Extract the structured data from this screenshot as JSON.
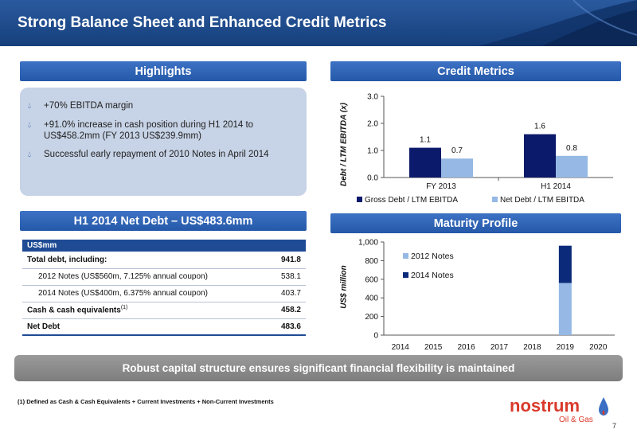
{
  "header": {
    "title": "Strong Balance Sheet and Enhanced Credit Metrics"
  },
  "highlights": {
    "heading": "Highlights",
    "items": [
      "+70% EBITDA margin",
      "+91.0% increase in cash position during H1 2014 to US$458.2mm (FY 2013 US$239.9mm)",
      "Successful early repayment of 2010 Notes in April 2014"
    ]
  },
  "net_debt": {
    "heading": "H1 2014 Net Debt – US$483.6mm",
    "unit_label": "US$mm",
    "rows": [
      {
        "label": "Total debt, including:",
        "value": "941.8"
      },
      {
        "label": "2012 Notes (US$560m, 7.125% annual coupon)",
        "value": "538.1"
      },
      {
        "label": "2014 Notes (US$400m, 6.375% annual coupon)",
        "value": "403.7"
      },
      {
        "label": "Cash & cash equivalents",
        "sup": "(1)",
        "value": "458.2"
      },
      {
        "label": "Net Debt",
        "value": "483.6"
      }
    ]
  },
  "credit_metrics": {
    "heading": "Credit Metrics"
  },
  "maturity": {
    "heading": "Maturity Profile"
  },
  "chart_data": [
    {
      "type": "bar",
      "title": "",
      "ylabel": "Debt / LTM EBITDA (x)",
      "ylim": [
        0,
        3
      ],
      "yticks": [
        "0.0",
        "1.0",
        "2.0",
        "3.0"
      ],
      "categories": [
        "FY 2013",
        "H1 2014"
      ],
      "series": [
        {
          "name": "Gross Debt / LTM EBITDA",
          "values": [
            1.1,
            1.6
          ],
          "labels": [
            "1.1",
            "1.6"
          ],
          "color": "#0b1a6b"
        },
        {
          "name": "Net Debt / LTM EBITDA",
          "values": [
            0.7,
            0.8
          ],
          "labels": [
            "0.7",
            "0.8"
          ],
          "color": "#95b8e4"
        }
      ],
      "legend": "bottom"
    },
    {
      "type": "bar",
      "stacked": true,
      "title": "",
      "ylabel": "US$ million",
      "ylim": [
        0,
        1000
      ],
      "yticks": [
        "0",
        "200",
        "400",
        "600",
        "800",
        "1,000"
      ],
      "categories": [
        "2014",
        "2015",
        "2016",
        "2017",
        "2018",
        "2019",
        "2020"
      ],
      "series": [
        {
          "name": "2012 Notes",
          "values": [
            0,
            0,
            0,
            0,
            0,
            560,
            0
          ],
          "color": "#95b8e4"
        },
        {
          "name": "2014 Notes",
          "values": [
            0,
            0,
            0,
            0,
            0,
            400,
            0
          ],
          "color": "#0b2a7a"
        }
      ],
      "legend": "top-left"
    }
  ],
  "banner": {
    "text": "Robust capital structure ensures significant financial flexibility is maintained"
  },
  "footnote": {
    "text": "(1) Defined as Cash & Cash Equivalents + Current Investments + Non-Current Investments"
  },
  "logo": {
    "name": "nostrum",
    "tagline": "Oil & Gas"
  },
  "page_number": "7"
}
